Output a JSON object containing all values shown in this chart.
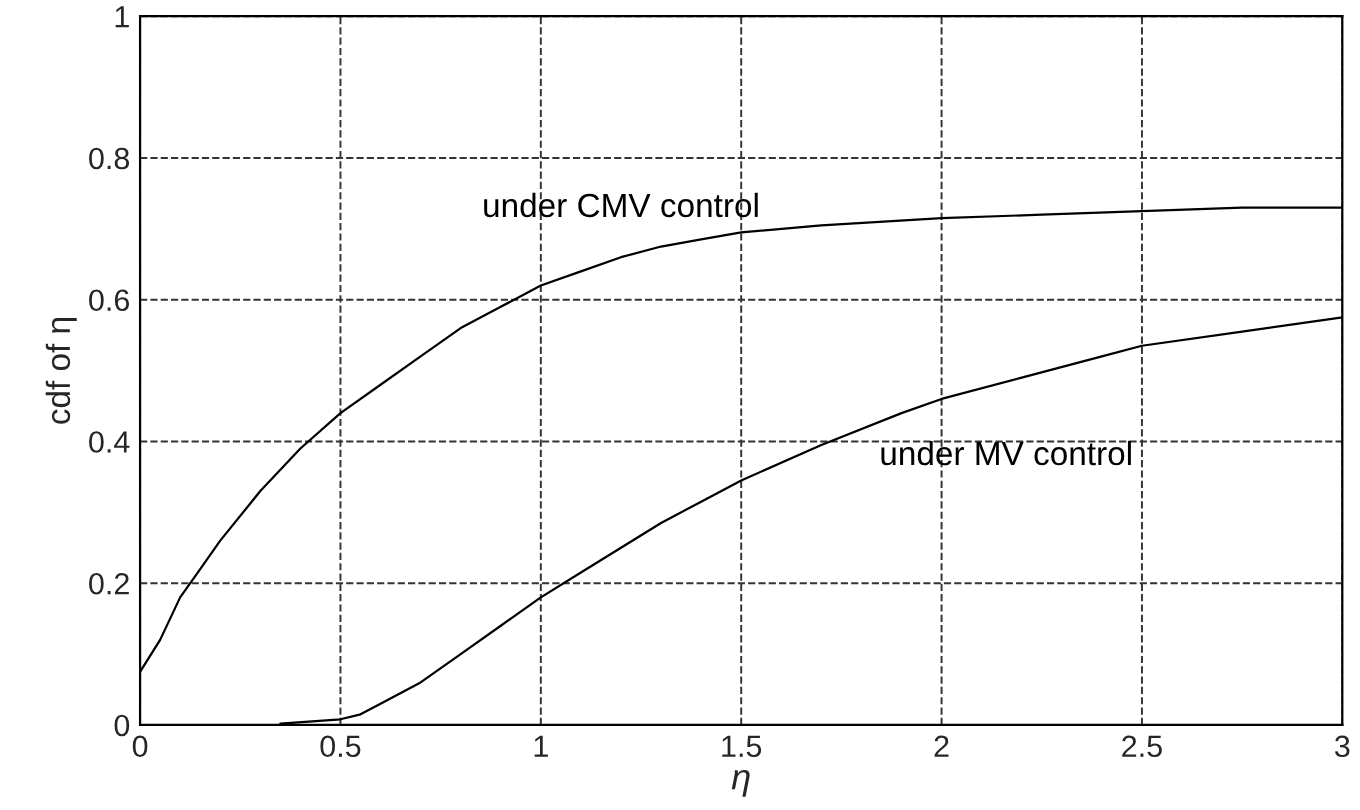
{
  "chart_data": {
    "type": "line",
    "xlabel": "η",
    "ylabel": "cdf of η",
    "xlim": [
      0,
      3
    ],
    "ylim": [
      0,
      1
    ],
    "xticks": [
      0,
      0.5,
      1,
      1.5,
      2,
      2.5,
      3
    ],
    "yticks": [
      0,
      0.2,
      0.4,
      0.6,
      0.8,
      1
    ],
    "grid": true,
    "line_style": "solid",
    "series": [
      {
        "name": "under CMV control",
        "color": "#000000",
        "x": [
          0,
          0.05,
          0.1,
          0.15,
          0.2,
          0.3,
          0.4,
          0.5,
          0.6,
          0.7,
          0.8,
          0.9,
          1.0,
          1.1,
          1.2,
          1.3,
          1.4,
          1.5,
          1.7,
          2.0,
          2.25,
          2.5,
          2.75,
          3.0
        ],
        "values": [
          0.075,
          0.12,
          0.18,
          0.22,
          0.26,
          0.33,
          0.39,
          0.44,
          0.48,
          0.52,
          0.56,
          0.59,
          0.62,
          0.64,
          0.66,
          0.675,
          0.685,
          0.695,
          0.705,
          0.715,
          0.72,
          0.725,
          0.73,
          0.73
        ]
      },
      {
        "name": "under MV control",
        "color": "#000000",
        "x": [
          0.35,
          0.5,
          0.55,
          0.6,
          0.7,
          0.8,
          0.9,
          1.0,
          1.1,
          1.2,
          1.3,
          1.4,
          1.5,
          1.7,
          1.9,
          2.0,
          2.2,
          2.4,
          2.5,
          2.75,
          3.0
        ],
        "values": [
          0.002,
          0.008,
          0.015,
          0.03,
          0.06,
          0.1,
          0.14,
          0.18,
          0.215,
          0.25,
          0.285,
          0.315,
          0.345,
          0.395,
          0.44,
          0.46,
          0.49,
          0.52,
          0.535,
          0.555,
          0.575
        ]
      }
    ]
  }
}
